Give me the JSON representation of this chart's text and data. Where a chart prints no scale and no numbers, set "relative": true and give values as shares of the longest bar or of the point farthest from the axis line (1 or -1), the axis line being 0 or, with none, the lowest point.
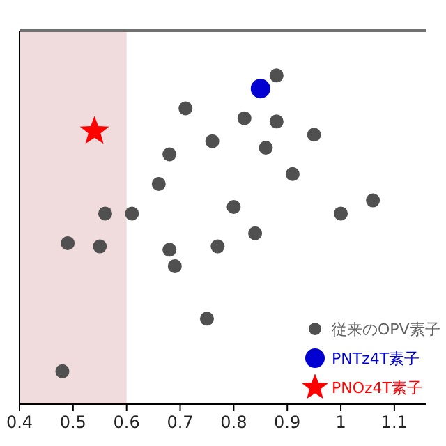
{
  "chart_data": {
    "type": "scatter",
    "relative": true,
    "xlim": [
      0.4,
      1.16
    ],
    "xticks": [
      0.4,
      0.5,
      0.6,
      0.7,
      0.8,
      0.9,
      1,
      1.1
    ],
    "legend": "bottom right",
    "bands": [
      {
        "axis": "x",
        "from": 0.4,
        "to": 0.6,
        "color": "#f0dcdc"
      }
    ],
    "series": [
      {
        "name": "従来のOPV素子",
        "color": "#505050",
        "marker": "circle",
        "x": [
          0.88,
          0.71,
          0.82,
          0.88,
          0.95,
          0.76,
          0.86,
          0.68,
          0.66,
          0.91,
          0.8,
          1.0,
          1.06,
          0.56,
          0.61,
          0.49,
          0.55,
          0.68,
          0.69,
          0.77,
          0.84,
          0.75,
          0.48
        ],
        "values": [
          1.0,
          0.9,
          0.87,
          0.86,
          0.82,
          0.8,
          0.78,
          0.76,
          0.67,
          0.7,
          0.6,
          0.58,
          0.62,
          0.58,
          0.58,
          0.49,
          0.48,
          0.47,
          0.42,
          0.48,
          0.52,
          0.26,
          0.1
        ]
      },
      {
        "name": "PNTz4T素子",
        "color": "#0000d0",
        "marker": "circle",
        "x": [
          0.85
        ],
        "values": [
          0.96
        ]
      },
      {
        "name": "PNOz4T素子",
        "color": "#ff0000",
        "marker": "star",
        "x": [
          0.54
        ],
        "values": [
          0.83
        ]
      }
    ]
  }
}
